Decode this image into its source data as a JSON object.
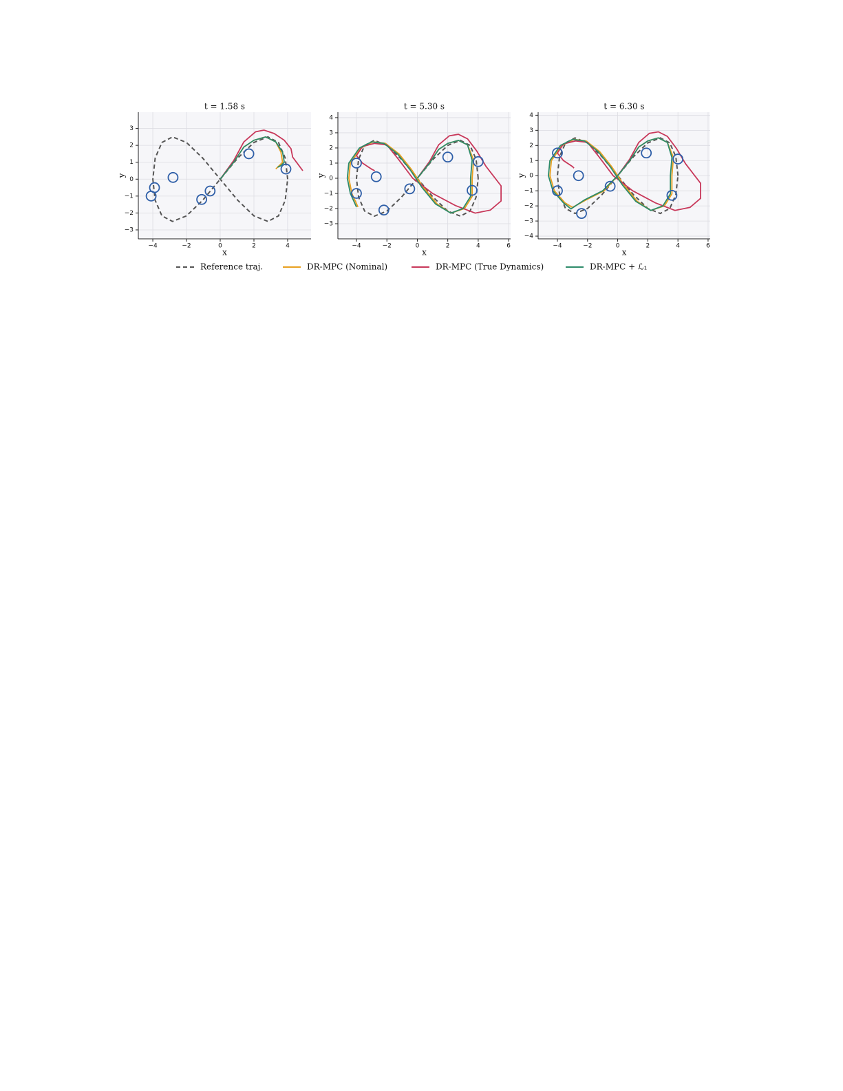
{
  "chart_data": [
    {
      "type": "line",
      "title": "t = 1.58 s",
      "x_label": "x",
      "y_label": "y",
      "xlim": [
        -4.86,
        5.39
      ],
      "ylim": [
        -3.53,
        3.96
      ],
      "xticks": [
        {
          "value": -4,
          "label": "−4"
        },
        {
          "value": -2,
          "label": "−2"
        },
        0,
        2,
        4
      ],
      "yticks": [
        {
          "value": -3,
          "label": "−3"
        },
        {
          "value": -2,
          "label": "−2"
        },
        {
          "value": -1,
          "label": "−1"
        },
        0,
        1,
        2,
        3
      ],
      "grid": true,
      "series": [
        {
          "name": "Reference traj.",
          "color": "#555555",
          "dashed": true,
          "x": [
            4,
            3.86,
            3.46,
            2.83,
            2,
            1.04,
            0,
            -1.04,
            -2,
            -2.83,
            -3.46,
            -3.86,
            -4,
            -3.86,
            -3.46,
            -2.83,
            -2,
            -1.04,
            0,
            1.04,
            2,
            2.83,
            3.46,
            3.86,
            4
          ],
          "values": [
            0,
            1.25,
            2.17,
            2.5,
            2.17,
            1.25,
            0,
            -1.25,
            -2.17,
            -2.5,
            -2.17,
            -1.25,
            0,
            1.25,
            2.17,
            2.5,
            2.17,
            1.25,
            0,
            -1.25,
            -2.17,
            -2.5,
            -2.17,
            -1.25,
            0
          ]
        },
        {
          "name": "DR-MPC (Nominal)",
          "color": "#e8a020",
          "x": [
            0,
            0.8,
            1.4,
            2,
            2.7,
            3.3,
            3.6,
            3.7,
            3.5,
            3.3
          ],
          "values": [
            0,
            1.0,
            1.9,
            2.3,
            2.5,
            2.2,
            1.6,
            1.0,
            0.8,
            0.6
          ]
        },
        {
          "name": "DR-MPC (True Dynamics)",
          "color": "#c8385a",
          "x": [
            0,
            0.8,
            1.4,
            2.1,
            2.6,
            3.2,
            3.8,
            4.2,
            4.3,
            4.6,
            4.9
          ],
          "values": [
            0,
            1.1,
            2.2,
            2.8,
            2.9,
            2.7,
            2.3,
            1.8,
            1.3,
            0.9,
            0.5
          ]
        },
        {
          "name": "DR-MPC + ℒ₁",
          "color": "#2e8b6a",
          "x": [
            0,
            0.8,
            1.4,
            2,
            2.7,
            3.3,
            3.7,
            3.8,
            3.6,
            3.4
          ],
          "values": [
            0,
            1.0,
            1.9,
            2.3,
            2.5,
            2.2,
            1.6,
            1.0,
            0.8,
            0.7
          ]
        }
      ],
      "obstacles": {
        "x": [
          -3.9,
          -4.1,
          -2.8,
          -1.1,
          -0.6,
          1.7,
          3.9
        ],
        "y": [
          -0.5,
          -1.0,
          0.1,
          -1.2,
          -0.7,
          1.5,
          0.6
        ]
      }
    },
    {
      "type": "line",
      "title": "t = 5.30 s",
      "x_label": "x",
      "y_label": "y",
      "xlim": [
        -5.22,
        6.13
      ],
      "ylim": [
        -4.0,
        4.36
      ],
      "xticks": [
        {
          "value": -4,
          "label": "−4"
        },
        {
          "value": -2,
          "label": "−2"
        },
        0,
        2,
        4,
        6
      ],
      "yticks": [
        {
          "value": -3,
          "label": "−3"
        },
        {
          "value": -2,
          "label": "−2"
        },
        {
          "value": -1,
          "label": "−1"
        },
        0,
        1,
        2,
        3,
        4
      ],
      "grid": true,
      "series": [
        {
          "color": "#555555",
          "dashed": true,
          "x": [
            4,
            3.86,
            3.46,
            2.83,
            2,
            1.04,
            0,
            -1.04,
            -2,
            -2.83,
            -3.46,
            -3.86,
            -4,
            -3.86,
            -3.46,
            -2.83,
            -2,
            -1.04,
            0,
            1.04,
            2,
            2.83,
            3.46,
            3.86,
            4
          ],
          "values": [
            0,
            1.25,
            2.17,
            2.5,
            2.17,
            1.25,
            0,
            -1.25,
            -2.17,
            -2.5,
            -2.17,
            -1.25,
            0,
            1.25,
            2.17,
            2.5,
            2.17,
            1.25,
            0,
            -1.25,
            -2.17,
            -2.5,
            -2.17,
            -1.25,
            0
          ]
        },
        {
          "color": "#e8a020",
          "x": [
            0,
            0.8,
            1.4,
            2,
            2.7,
            3.3,
            3.7,
            3.6,
            3.6,
            3.1,
            2.2,
            1.3,
            0.4,
            -0.4,
            -1.2,
            -2.1,
            -2.9,
            -3.7,
            -4.4,
            -4.5,
            -4.3,
            -3.9
          ],
          "values": [
            0,
            1,
            1.9,
            2.3,
            2.5,
            2.2,
            1.2,
            0,
            -1.2,
            -2,
            -2.3,
            -1.7,
            -0.6,
            0.6,
            1.6,
            2.3,
            2.4,
            2,
            1,
            0,
            -1,
            -1.9
          ]
        },
        {
          "color": "#c8385a",
          "x": [
            0,
            0.8,
            1.4,
            2.1,
            2.7,
            3.3,
            3.9,
            4.5,
            5.5,
            5.5,
            4.8,
            3.8,
            2.5,
            1,
            -0.3,
            -1.2,
            -2,
            -2.8,
            -3.6,
            -4,
            -3.6,
            -3,
            -2.8
          ],
          "values": [
            0,
            1.1,
            2.2,
            2.8,
            2.9,
            2.6,
            1.8,
            0.8,
            -0.5,
            -1.5,
            -2.1,
            -2.3,
            -1.8,
            -1,
            0,
            1.2,
            2.2,
            2.3,
            2.1,
            1.5,
            1,
            0.6,
            0.5
          ]
        },
        {
          "color": "#2e8b6a",
          "x": [
            0,
            0.8,
            1.4,
            2,
            2.7,
            3.3,
            3.6,
            3.5,
            3.5,
            3,
            2.2,
            1.2,
            0.3,
            -0.5,
            -1.3,
            -2.2,
            -3,
            -3.8,
            -4.5,
            -4.6,
            -4.4,
            -4
          ],
          "values": [
            0,
            1,
            1.9,
            2.3,
            2.5,
            2.2,
            1.2,
            0,
            -1.2,
            -2,
            -2.3,
            -1.7,
            -0.6,
            0.6,
            1.6,
            2.3,
            2.4,
            2,
            1,
            0,
            -1,
            -1.9
          ]
        }
      ],
      "obstacles": {
        "x": [
          -4,
          -4,
          -2.7,
          -2.2,
          -0.5,
          2,
          3.6,
          4
        ],
        "y": [
          1,
          -1,
          0.1,
          -2.1,
          -0.7,
          1.4,
          -0.8,
          1.1
        ]
      }
    },
    {
      "type": "line",
      "title": "t = 6.30 s",
      "x_label": "x",
      "y_label": "y",
      "xlim": [
        -5.28,
        6.14
      ],
      "ylim": [
        -4.18,
        4.2
      ],
      "xticks": [
        {
          "value": -4,
          "label": "−4"
        },
        {
          "value": -2,
          "label": "−2"
        },
        0,
        2,
        4,
        6
      ],
      "yticks": [
        {
          "value": -4,
          "label": "−4"
        },
        {
          "value": -3,
          "label": "−3"
        },
        {
          "value": -2,
          "label": "−2"
        },
        {
          "value": -1,
          "label": "−1"
        },
        0,
        1,
        2,
        3,
        4
      ],
      "grid": true,
      "series": [
        {
          "color": "#555555",
          "dashed": true,
          "x": [
            4,
            3.86,
            3.46,
            2.83,
            2,
            1.04,
            0,
            -1.04,
            -2,
            -2.83,
            -3.46,
            -3.86,
            -4,
            -3.86,
            -3.46,
            -2.83,
            -2,
            -1.04,
            0,
            1.04,
            2,
            2.83,
            3.46,
            3.86,
            4
          ],
          "values": [
            0,
            1.25,
            2.17,
            2.5,
            2.17,
            1.25,
            0,
            -1.25,
            -2.17,
            -2.5,
            -2.17,
            -1.25,
            0,
            1.25,
            2.17,
            2.5,
            2.17,
            1.25,
            0,
            -1.25,
            -2.17,
            -2.5,
            -2.17,
            -1.25,
            0
          ]
        },
        {
          "color": "#e8a020",
          "x": [
            0,
            0.8,
            1.4,
            2,
            2.7,
            3.3,
            3.7,
            3.6,
            3.6,
            3.1,
            2.2,
            1.3,
            0.4,
            -0.4,
            -1.2,
            -2.1,
            -2.9,
            -3.7,
            -4.4,
            -4.5,
            -4.2,
            -3.5,
            -3.0,
            -2.1,
            -0.9,
            0
          ],
          "values": [
            0,
            1,
            1.9,
            2.3,
            2.5,
            2.2,
            1.2,
            0,
            -1.2,
            -2,
            -2.3,
            -1.7,
            -0.6,
            0.6,
            1.6,
            2.3,
            2.4,
            2,
            1,
            0,
            -1,
            -1.8,
            -2.1,
            -1.6,
            -1,
            0
          ]
        },
        {
          "color": "#c8385a",
          "x": [
            0,
            0.8,
            1.4,
            2.1,
            2.7,
            3.3,
            3.9,
            4.5,
            5.5,
            5.5,
            4.8,
            3.8,
            2.5,
            1,
            -0.3,
            -1.2,
            -2,
            -2.8,
            -3.6,
            -4,
            -3.6,
            -3,
            -2.9
          ],
          "values": [
            0,
            1.1,
            2.2,
            2.8,
            2.9,
            2.6,
            1.8,
            0.8,
            -0.5,
            -1.5,
            -2.1,
            -2.3,
            -1.8,
            -1,
            0,
            1.2,
            2.2,
            2.3,
            2.1,
            1.5,
            1,
            0.6,
            0.5
          ]
        },
        {
          "color": "#2e8b6a",
          "x": [
            0,
            0.8,
            1.4,
            2,
            2.7,
            3.3,
            3.6,
            3.5,
            3.5,
            3,
            2.2,
            1.2,
            0.3,
            -0.5,
            -1.3,
            -2.2,
            -3,
            -3.8,
            -4.5,
            -4.6,
            -4.3,
            -3.6,
            -3.1,
            -2.2,
            -1,
            0
          ],
          "values": [
            0,
            1,
            1.9,
            2.3,
            2.5,
            2.2,
            1.2,
            0,
            -1.2,
            -2,
            -2.3,
            -1.7,
            -0.6,
            0.6,
            1.6,
            2.3,
            2.4,
            2,
            1,
            0,
            -1,
            -1.8,
            -2.2,
            -1.6,
            -1,
            0
          ]
        }
      ],
      "obstacles": {
        "x": [
          -4,
          -4,
          -2.6,
          -2.4,
          -0.5,
          1.9,
          3.6,
          4
        ],
        "y": [
          1.5,
          -1,
          0,
          -2.5,
          -0.7,
          1.5,
          -1.3,
          1.1
        ]
      }
    }
  ]
}
